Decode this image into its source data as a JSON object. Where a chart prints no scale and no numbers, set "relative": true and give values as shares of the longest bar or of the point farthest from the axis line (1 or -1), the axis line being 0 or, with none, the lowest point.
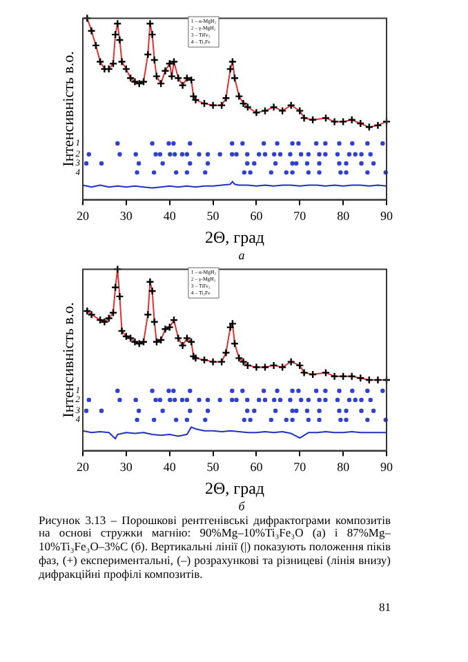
{
  "chart_data": [
    {
      "type": "scatter",
      "relative": true,
      "ylabel": "Інтенсивність в.о.",
      "xlabel": "2Θ, град",
      "xlim": [
        20,
        90
      ],
      "xticks": [
        20,
        30,
        40,
        50,
        60,
        70,
        80,
        90
      ],
      "annotations": [
        "а",
        "1",
        "2",
        "3",
        "4",
        "1 – α-MgH₂",
        "2 – γ-MgH₂",
        "3 – TiFe₂",
        "4 – Ti₂Fe"
      ],
      "series": [
        {
          "type": "scatter",
          "marker": "cross",
          "color": "#000000",
          "x": [
            21,
            22,
            23,
            24,
            25,
            26,
            27,
            27.5,
            28,
            28.5,
            29,
            30,
            31,
            32,
            33,
            34,
            35,
            35.5,
            36,
            36.5,
            37,
            38,
            39,
            40,
            40.5,
            41,
            42,
            43,
            44,
            45,
            45.5,
            46,
            48,
            50,
            52,
            53,
            54,
            54.5,
            55,
            56,
            57,
            58,
            60,
            62,
            64,
            66,
            68,
            70,
            71,
            73,
            76,
            78,
            80,
            82,
            84,
            86,
            88,
            90
          ],
          "values": [
            1,
            0.93,
            0.85,
            0.76,
            0.72,
            0.72,
            0.75,
            0.91,
            0.97,
            0.88,
            0.76,
            0.72,
            0.67,
            0.65,
            0.64,
            0.65,
            0.8,
            0.97,
            0.91,
            0.77,
            0.68,
            0.64,
            0.71,
            0.75,
            0.68,
            0.76,
            0.67,
            0.63,
            0.67,
            0.66,
            0.57,
            0.55,
            0.53,
            0.52,
            0.52,
            0.56,
            0.72,
            0.76,
            0.67,
            0.57,
            0.53,
            0.51,
            0.48,
            0.49,
            0.51,
            0.49,
            0.52,
            0.49,
            0.45,
            0.44,
            0.45,
            0.43,
            0.43,
            0.44,
            0.42,
            0.4,
            0.41,
            0.43
          ]
        },
        {
          "type": "line",
          "marker": "none",
          "color": "#e03030",
          "x": [
            21,
            22,
            23,
            24,
            25,
            26,
            27,
            27.5,
            28,
            28.5,
            29,
            30,
            31,
            32,
            33,
            34,
            35,
            35.5,
            36,
            36.5,
            37,
            38,
            39,
            40,
            40.5,
            41,
            42,
            43,
            44,
            45,
            45.5,
            46,
            48,
            50,
            52,
            53,
            54,
            54.5,
            55,
            56,
            57,
            58,
            60,
            62,
            64,
            66,
            68,
            70,
            71,
            73,
            76,
            78,
            80,
            82,
            84,
            86,
            88,
            90
          ],
          "values": [
            1,
            0.93,
            0.85,
            0.76,
            0.72,
            0.72,
            0.75,
            0.91,
            0.97,
            0.88,
            0.76,
            0.72,
            0.67,
            0.65,
            0.64,
            0.65,
            0.8,
            0.97,
            0.91,
            0.77,
            0.68,
            0.64,
            0.71,
            0.75,
            0.68,
            0.76,
            0.67,
            0.63,
            0.67,
            0.66,
            0.57,
            0.55,
            0.53,
            0.52,
            0.52,
            0.56,
            0.72,
            0.76,
            0.67,
            0.57,
            0.53,
            0.51,
            0.48,
            0.49,
            0.51,
            0.49,
            0.52,
            0.49,
            0.45,
            0.44,
            0.45,
            0.43,
            0.43,
            0.44,
            0.42,
            0.4,
            0.41,
            0.43
          ]
        },
        {
          "type": "line",
          "marker": "none",
          "color": "#2030c0",
          "x": [
            20,
            22,
            24,
            26,
            28,
            30,
            32,
            34,
            36,
            38,
            40,
            42,
            44,
            46,
            48,
            50,
            52,
            54,
            54.5,
            55,
            56,
            58,
            60,
            62,
            64,
            66,
            68,
            70,
            72,
            74,
            76,
            78,
            80,
            82,
            84,
            86,
            88,
            90
          ],
          "values": [
            0.08,
            0.07,
            0.08,
            0.07,
            0.075,
            0.07,
            0.075,
            0.07,
            0.065,
            0.07,
            0.075,
            0.07,
            0.075,
            0.07,
            0.075,
            0.075,
            0.08,
            0.085,
            0.1,
            0.085,
            0.08,
            0.08,
            0.075,
            0.08,
            0.075,
            0.08,
            0.08,
            0.075,
            0.08,
            0.08,
            0.075,
            0.08,
            0.075,
            0.08,
            0.08,
            0.075,
            0.08,
            0.075
          ]
        },
        {
          "type": "scatter",
          "marker": "circle",
          "color": "#3040d0",
          "x": [
            28,
            36,
            39.8,
            40.9,
            44.7,
            54.4,
            56.8,
            61.7,
            64.8,
            68.3,
            69.7,
            73.8,
            75.9,
            79.1,
            82.1,
            85.6,
            89.1
          ],
          "values": [
            0.31,
            0.31,
            0.31,
            0.31,
            0.31,
            0.31,
            0.31,
            0.31,
            0.31,
            0.31,
            0.31,
            0.31,
            0.31,
            0.31,
            0.31,
            0.31,
            0.31
          ]
        },
        {
          "type": "scatter",
          "marker": "circle",
          "color": "#3040d0",
          "x": [
            21.4,
            28.5,
            32.2,
            36.8,
            37.8,
            40.1,
            41.2,
            42.9,
            44,
            46.8,
            48.8,
            51.6,
            54.4,
            55.4,
            57.9,
            60.6,
            62,
            64.1,
            65.5,
            67.8,
            70.3,
            72,
            74.5,
            75.9,
            78.7,
            81.4,
            82.8,
            84.2,
            86.3
          ],
          "values": [
            0.25,
            0.25,
            0.25,
            0.25,
            0.25,
            0.25,
            0.25,
            0.25,
            0.25,
            0.25,
            0.25,
            0.25,
            0.25,
            0.25,
            0.25,
            0.25,
            0.25,
            0.25,
            0.25,
            0.25,
            0.25,
            0.25,
            0.25,
            0.25,
            0.25,
            0.25,
            0.25,
            0.25,
            0.25
          ]
        },
        {
          "type": "scatter",
          "marker": "circle",
          "color": "#3040d0",
          "x": [
            20.8,
            24.3,
            32.9,
            38.4,
            44.7,
            48.8,
            57.9,
            59.5,
            64.4,
            68.3,
            69.2,
            71.7,
            74.5,
            79.1,
            80.7,
            84.2,
            87
          ],
          "values": [
            0.2,
            0.2,
            0.2,
            0.2,
            0.2,
            0.2,
            0.2,
            0.2,
            0.2,
            0.2,
            0.2,
            0.2,
            0.2,
            0.2,
            0.2,
            0.2,
            0.2
          ]
        },
        {
          "type": "scatter",
          "marker": "circle",
          "color": "#3040d0",
          "x": [
            32.5,
            36.4,
            41.5,
            44,
            48.2,
            57.2,
            58.6,
            63.4,
            66.9,
            68.3,
            72,
            74.5,
            79.4,
            80.7,
            85.6,
            89.8
          ],
          "values": [
            0.15,
            0.15,
            0.15,
            0.15,
            0.15,
            0.15,
            0.15,
            0.15,
            0.15,
            0.15,
            0.15,
            0.15,
            0.15,
            0.15,
            0.15,
            0.15
          ]
        }
      ]
    },
    {
      "type": "scatter",
      "relative": true,
      "ylabel": "Інтенсивність в.о.",
      "xlabel": "2Θ, град",
      "xlim": [
        20,
        90
      ],
      "xticks": [
        20,
        30,
        40,
        50,
        60,
        70,
        80,
        90
      ],
      "annotations": [
        "б",
        "1",
        "2",
        "3",
        "4",
        "1 – α-MgH₂",
        "2 – γ-MgH₂",
        "3 – TiFe₂",
        "4 – Ti₂Fe",
        "Рисунок 3.13 – Порошкові рентгенівські дифрактограми композитів на основі стружки магнію: 90%Mg–10%Ti₃Fe₃O (а) і 87%Mg–10%Ti₃Fe₃O–3%C (б). Вертикальні лінії (|) показують положення піків фаз, (+) експериментальні, (–) розрахункові та різницеві (лінія внизу) дифракційні профілі композитів.",
        "81"
      ],
      "series": [
        {
          "type": "scatter",
          "marker": "cross",
          "color": "#000000",
          "x": [
            21,
            22,
            24,
            25,
            26,
            27,
            27.5,
            28,
            28.5,
            29,
            30,
            31,
            32,
            33,
            34,
            35,
            35.5,
            36,
            36.5,
            37,
            38,
            39,
            40,
            41,
            42,
            43,
            44,
            45,
            45.5,
            46,
            48,
            50,
            52,
            53,
            54,
            54.5,
            55,
            56,
            57,
            58,
            60,
            62,
            64,
            66,
            68,
            70,
            71,
            73,
            76,
            78,
            80,
            82,
            84,
            86,
            88,
            90
          ],
          "values": [
            0.77,
            0.75,
            0.72,
            0.71,
            0.73,
            0.76,
            0.9,
            1,
            0.85,
            0.66,
            0.63,
            0.62,
            0.6,
            0.59,
            0.6,
            0.75,
            0.93,
            0.88,
            0.71,
            0.6,
            0.61,
            0.67,
            0.68,
            0.72,
            0.62,
            0.58,
            0.62,
            0.6,
            0.52,
            0.51,
            0.5,
            0.49,
            0.49,
            0.54,
            0.68,
            0.7,
            0.59,
            0.51,
            0.49,
            0.47,
            0.46,
            0.46,
            0.47,
            0.46,
            0.49,
            0.47,
            0.43,
            0.42,
            0.43,
            0.41,
            0.41,
            0.41,
            0.4,
            0.39,
            0.39,
            0.39
          ]
        },
        {
          "type": "line",
          "marker": "none",
          "color": "#e03030",
          "x": [
            21,
            22,
            24,
            25,
            26,
            27,
            27.5,
            28,
            28.5,
            29,
            30,
            31,
            32,
            33,
            34,
            35,
            35.5,
            36,
            36.5,
            37,
            38,
            39,
            40,
            41,
            42,
            43,
            44,
            45,
            45.5,
            46,
            48,
            50,
            52,
            53,
            54,
            54.5,
            55,
            56,
            57,
            58,
            60,
            62,
            64,
            66,
            68,
            70,
            71,
            73,
            76,
            78,
            80,
            82,
            84,
            86,
            88,
            90
          ],
          "values": [
            0.77,
            0.75,
            0.72,
            0.71,
            0.73,
            0.76,
            0.9,
            1,
            0.85,
            0.66,
            0.63,
            0.62,
            0.6,
            0.59,
            0.6,
            0.75,
            0.93,
            0.88,
            0.71,
            0.6,
            0.61,
            0.67,
            0.68,
            0.72,
            0.62,
            0.58,
            0.62,
            0.6,
            0.52,
            0.51,
            0.5,
            0.49,
            0.49,
            0.54,
            0.68,
            0.7,
            0.59,
            0.51,
            0.49,
            0.47,
            0.46,
            0.46,
            0.47,
            0.46,
            0.49,
            0.47,
            0.43,
            0.42,
            0.43,
            0.41,
            0.41,
            0.41,
            0.4,
            0.39,
            0.39,
            0.39
          ]
        },
        {
          "type": "line",
          "marker": "none",
          "color": "#2030c0",
          "x": [
            20,
            22,
            24,
            26,
            27.5,
            28,
            30,
            32,
            34,
            36,
            38,
            40,
            42,
            44,
            45,
            46,
            48,
            50,
            52,
            54,
            56,
            58,
            60,
            62,
            64,
            66,
            68,
            70,
            72,
            74,
            76,
            78,
            80,
            82,
            84,
            86,
            88,
            90
          ],
          "values": [
            0.11,
            0.1,
            0.105,
            0.1,
            0.066,
            0.09,
            0.1,
            0.095,
            0.1,
            0.09,
            0.085,
            0.09,
            0.08,
            0.09,
            0.13,
            0.12,
            0.11,
            0.11,
            0.105,
            0.11,
            0.105,
            0.1,
            0.1,
            0.105,
            0.1,
            0.105,
            0.095,
            0.07,
            0.1,
            0.1,
            0.105,
            0.1,
            0.1,
            0.105,
            0.1,
            0.1,
            0.1,
            0.1
          ]
        },
        {
          "type": "scatter",
          "marker": "circle",
          "color": "#3040d0",
          "x": [
            28,
            36,
            39.8,
            40.9,
            44.7,
            54.4,
            56.8,
            61.7,
            64.8,
            68.3,
            69.7,
            73.8,
            75.9,
            79.1,
            82.1,
            85.6,
            89.1
          ],
          "values": [
            0.33,
            0.33,
            0.33,
            0.33,
            0.33,
            0.33,
            0.33,
            0.33,
            0.33,
            0.33,
            0.33,
            0.33,
            0.33,
            0.33,
            0.33,
            0.33,
            0.33
          ]
        },
        {
          "type": "scatter",
          "marker": "circle",
          "color": "#3040d0",
          "x": [
            21.4,
            28.5,
            32.2,
            36.8,
            37.8,
            40.1,
            41.2,
            42.9,
            44,
            46.8,
            48.8,
            51.6,
            54.4,
            55.4,
            57.9,
            60.6,
            62,
            64.1,
            65.5,
            67.8,
            70.3,
            72,
            74.5,
            75.9,
            78.7,
            81.4,
            82.8,
            84.2,
            86.3
          ],
          "values": [
            0.28,
            0.28,
            0.28,
            0.28,
            0.28,
            0.28,
            0.28,
            0.28,
            0.28,
            0.28,
            0.28,
            0.28,
            0.28,
            0.28,
            0.28,
            0.28,
            0.28,
            0.28,
            0.28,
            0.28,
            0.28,
            0.28,
            0.28,
            0.28,
            0.28,
            0.28,
            0.28,
            0.28,
            0.28
          ]
        },
        {
          "type": "scatter",
          "marker": "circle",
          "color": "#3040d0",
          "x": [
            20.8,
            24.3,
            32.9,
            38.4,
            44.7,
            48.8,
            57.9,
            59.5,
            64.4,
            68.3,
            69.2,
            71.7,
            74.5,
            79.1,
            80.7,
            84.2,
            87
          ],
          "values": [
            0.22,
            0.22,
            0.22,
            0.22,
            0.22,
            0.22,
            0.22,
            0.22,
            0.22,
            0.22,
            0.22,
            0.22,
            0.22,
            0.22,
            0.22,
            0.22,
            0.22
          ]
        },
        {
          "type": "scatter",
          "marker": "circle",
          "color": "#3040d0",
          "x": [
            32.5,
            36.4,
            41.5,
            44,
            48.2,
            57.2,
            58.6,
            63.4,
            66.9,
            68.3,
            72,
            74.5,
            79.4,
            80.7,
            85.6,
            89.8
          ],
          "values": [
            0.17,
            0.17,
            0.17,
            0.17,
            0.17,
            0.17,
            0.17,
            0.17,
            0.17,
            0.17,
            0.17,
            0.17,
            0.17,
            0.17,
            0.17,
            0.17
          ]
        }
      ]
    }
  ]
}
